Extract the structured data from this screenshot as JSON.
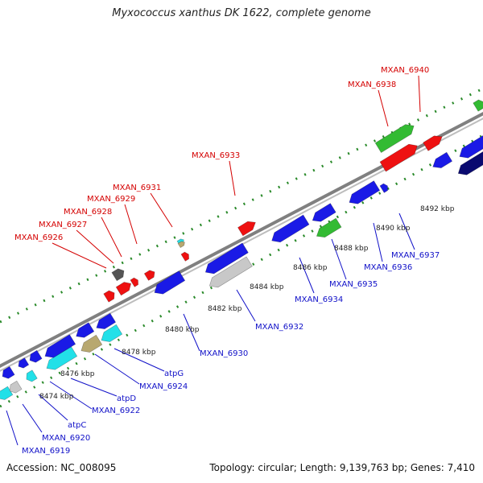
{
  "title": "Myxococcus xanthus DK 1622, complete genome",
  "accession": "Accession: NC_008095",
  "summary": "Topology: circular; Length: 9,139,763 bp; Genes: 7,410",
  "colors": {
    "forward_label": "#d40000",
    "reverse_label": "#1010c8",
    "backbone": "#808080",
    "tick": "#2a8a2a",
    "blue_gene": "#1a1ae6",
    "red_gene": "#ee1111",
    "green_gene": "#33bb33",
    "cyan_gene": "#22e0e8",
    "gray_gene": "#c8c8c8",
    "dark_gray_gene": "#555555",
    "khaki_gene": "#b8a870",
    "navy_gene": "#0a0a70"
  },
  "scale_labels": [
    "8474 kbp",
    "8476 kbp",
    "8478 kbp",
    "8480 kbp",
    "8482 kbp",
    "8484 kbp",
    "8486 kbp",
    "8488 kbp",
    "8490 kbp",
    "8492 kbp"
  ],
  "forward_genes": [
    "MXAN_6926",
    "MXAN_6927",
    "MXAN_6928",
    "MXAN_6929",
    "MXAN_6931",
    "MXAN_6933",
    "MXAN_6938",
    "MXAN_6940"
  ],
  "reverse_genes": [
    "MXAN_6919",
    "MXAN_6920",
    "atpC",
    "MXAN_6922",
    "atpD",
    "MXAN_6924",
    "atpG",
    "MXAN_6930",
    "MXAN_6932",
    "MXAN_6934",
    "MXAN_6935",
    "MXAN_6936",
    "MXAN_6937"
  ]
}
